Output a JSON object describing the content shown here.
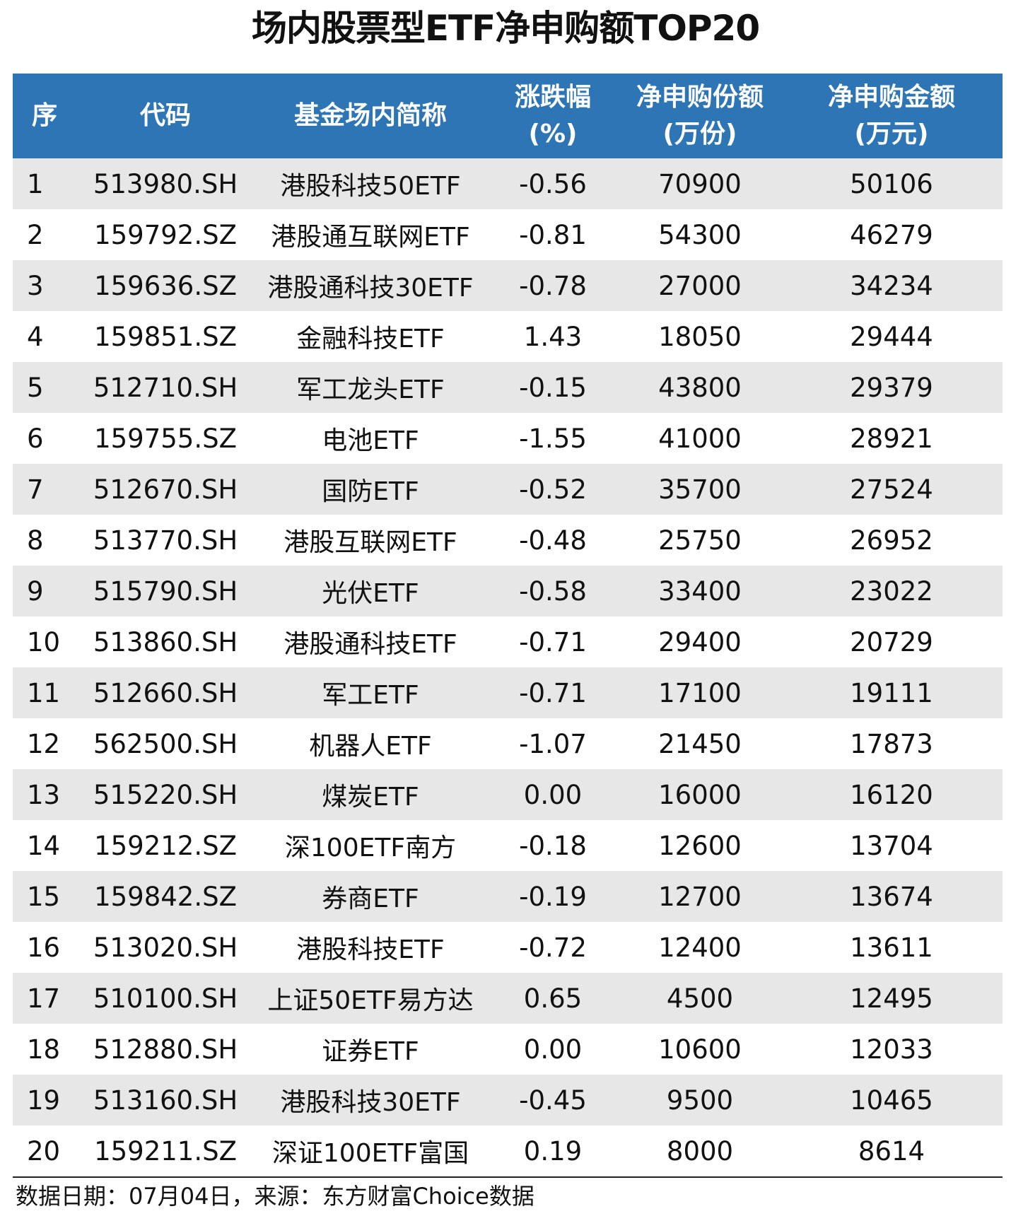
{
  "title": "场内股票型ETF净申购额TOP20",
  "headers": {
    "seq": "序",
    "code": "代码",
    "name": "基金场内简称",
    "change_l1": "涨跌幅",
    "change_l2": "(%)",
    "shares_l1": "净申购份额",
    "shares_l2": "(万份)",
    "amount_l1": "净申购金额",
    "amount_l2": "(万元)"
  },
  "rows": [
    {
      "seq": "1",
      "code": "513980.SH",
      "name": "港股科技50ETF",
      "change": "-0.56",
      "shares": "70900",
      "amount": "50106"
    },
    {
      "seq": "2",
      "code": "159792.SZ",
      "name": "港股通互联网ETF",
      "change": "-0.81",
      "shares": "54300",
      "amount": "46279"
    },
    {
      "seq": "3",
      "code": "159636.SZ",
      "name": "港股通科技30ETF",
      "change": "-0.78",
      "shares": "27000",
      "amount": "34234"
    },
    {
      "seq": "4",
      "code": "159851.SZ",
      "name": "金融科技ETF",
      "change": "1.43",
      "shares": "18050",
      "amount": "29444"
    },
    {
      "seq": "5",
      "code": "512710.SH",
      "name": "军工龙头ETF",
      "change": "-0.15",
      "shares": "43800",
      "amount": "29379"
    },
    {
      "seq": "6",
      "code": "159755.SZ",
      "name": "电池ETF",
      "change": "-1.55",
      "shares": "41000",
      "amount": "28921"
    },
    {
      "seq": "7",
      "code": "512670.SH",
      "name": "国防ETF",
      "change": "-0.52",
      "shares": "35700",
      "amount": "27524"
    },
    {
      "seq": "8",
      "code": "513770.SH",
      "name": "港股互联网ETF",
      "change": "-0.48",
      "shares": "25750",
      "amount": "26952"
    },
    {
      "seq": "9",
      "code": "515790.SH",
      "name": "光伏ETF",
      "change": "-0.58",
      "shares": "33400",
      "amount": "23022"
    },
    {
      "seq": "10",
      "code": "513860.SH",
      "name": "港股通科技ETF",
      "change": "-0.71",
      "shares": "29400",
      "amount": "20729"
    },
    {
      "seq": "11",
      "code": "512660.SH",
      "name": "军工ETF",
      "change": "-0.71",
      "shares": "17100",
      "amount": "19111"
    },
    {
      "seq": "12",
      "code": "562500.SH",
      "name": "机器人ETF",
      "change": "-1.07",
      "shares": "21450",
      "amount": "17873"
    },
    {
      "seq": "13",
      "code": "515220.SH",
      "name": "煤炭ETF",
      "change": "0.00",
      "shares": "16000",
      "amount": "16120"
    },
    {
      "seq": "14",
      "code": "159212.SZ",
      "name": "深100ETF南方",
      "change": "-0.18",
      "shares": "12600",
      "amount": "13704"
    },
    {
      "seq": "15",
      "code": "159842.SZ",
      "name": "券商ETF",
      "change": "-0.19",
      "shares": "12700",
      "amount": "13674"
    },
    {
      "seq": "16",
      "code": "513020.SH",
      "name": "港股科技ETF",
      "change": "-0.72",
      "shares": "12400",
      "amount": "13611"
    },
    {
      "seq": "17",
      "code": "510100.SH",
      "name": "上证50ETF易方达",
      "change": "0.65",
      "shares": "4500",
      "amount": "12495"
    },
    {
      "seq": "18",
      "code": "512880.SH",
      "name": "证券ETF",
      "change": "0.00",
      "shares": "10600",
      "amount": "12033"
    },
    {
      "seq": "19",
      "code": "513160.SH",
      "name": "港股科技30ETF",
      "change": "-0.45",
      "shares": "9500",
      "amount": "10465"
    },
    {
      "seq": "20",
      "code": "159211.SZ",
      "name": "深证100ETF富国",
      "change": "0.19",
      "shares": "8000",
      "amount": "8614"
    }
  ],
  "source": "数据日期：07月04日，来源：东方财富Choice数据",
  "colors": {
    "header_bg": "#2e75b6",
    "header_text": "#ffffff",
    "stripe": "#e7e7e7"
  }
}
